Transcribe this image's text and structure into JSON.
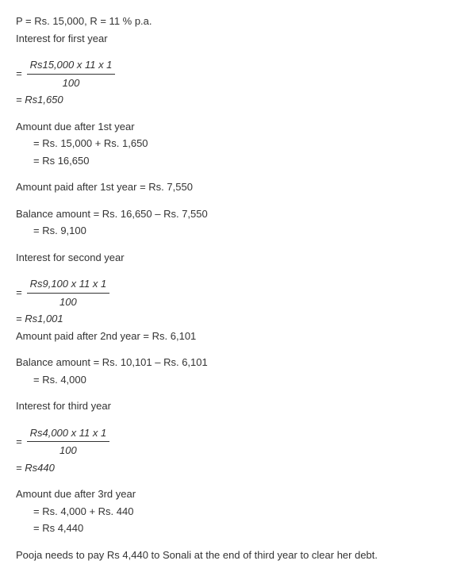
{
  "given": "P = Rs. 15,000, R = 11 % p.a.",
  "year1": {
    "heading": "Interest for first year",
    "frac_num": "Rs15,000 x 11 x 1",
    "frac_den": "100",
    "result_eq": "=",
    "result": "Rs1,650",
    "amount_due_heading": "Amount due after 1st year",
    "amount_due_calc": "= Rs. 15,000 + Rs. 1,650",
    "amount_due_result": "= Rs 16,650",
    "amount_paid": "Amount paid after 1st year = Rs. 7,550",
    "balance_heading": "Balance amount = Rs. 16,650 – Rs. 7,550",
    "balance_result": "= Rs. 9,100"
  },
  "year2": {
    "heading": "Interest for second year",
    "frac_num": "Rs9,100 x 11 x 1",
    "frac_den": "100",
    "result_eq": "=",
    "result": "Rs1,001",
    "amount_paid": "Amount paid after 2nd year = Rs. 6,101",
    "balance_heading": "Balance amount = Rs. 10,101 – Rs. 6,101",
    "balance_result": "= Rs. 4,000"
  },
  "year3": {
    "heading": "Interest for third year",
    "frac_num": "Rs4,000 x 11 x 1",
    "frac_den": "100",
    "result_eq": "=",
    "result": "Rs440",
    "amount_due_heading": "Amount due after 3rd year",
    "amount_due_calc": "= Rs. 4,000 + Rs. 440",
    "amount_due_result": "= Rs 4,440"
  },
  "conclusion": "Pooja needs to pay Rs 4,440 to Sonali at the end of third year to clear her debt."
}
